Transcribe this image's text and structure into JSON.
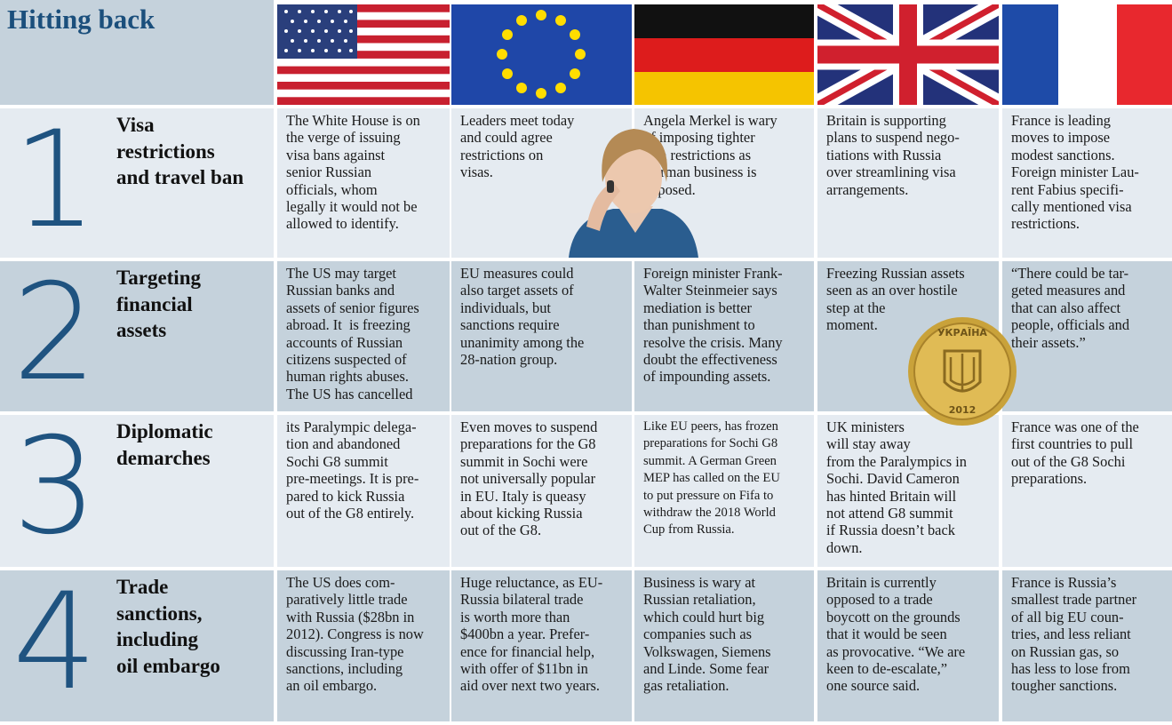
{
  "header": {
    "title": "Hitting back"
  },
  "rows": [
    {
      "number": "1",
      "heading": [
        "Visa",
        "restrictions",
        "and travel ban"
      ],
      "cells": [
        [
          "The White House is on",
          "the verge of issuing",
          "visa bans against",
          "senior Russian",
          "officials, whom",
          "legally it would not be",
          "allowed to identify."
        ],
        [
          "Leaders meet today",
          "and could agree",
          "restrictions on",
          "visas."
        ],
        [
          "Angela Merkel is wary",
          "of imposing tighter",
          "visa restrictions as",
          "German business is",
          "opposed."
        ],
        [
          "Britain is supporting",
          "plans to suspend nego-",
          "tiations with Russia",
          "over streamlining visa",
          "arrangements."
        ],
        [
          "France is leading",
          "moves to impose",
          "modest sanctions.",
          "Foreign minister Lau-",
          "rent Fabius specifi-",
          "cally mentioned visa",
          "restrictions."
        ]
      ]
    },
    {
      "number": "2",
      "heading": [
        "Targeting",
        "financial",
        "assets"
      ],
      "cells": [
        [
          "The US may target",
          "Russian banks and",
          "assets of senior figures",
          "abroad. It  is freezing",
          "accounts of Russian",
          "citizens suspected of",
          "human rights abuses.",
          "The US has cancelled"
        ],
        [
          "EU measures could",
          "also target assets of",
          "individuals, but",
          "sanctions require",
          "unanimity among the",
          "28-nation group."
        ],
        [
          "Foreign minister Frank-",
          "Walter Steinmeier says",
          "mediation is better",
          "than punishment to",
          "resolve the crisis. Many",
          "doubt the effectiveness",
          "of impounding assets."
        ],
        [
          "Freezing Russian assets",
          "seen as an over hostile",
          "step at the",
          "moment."
        ],
        [
          "“There could be tar-",
          "geted measures and",
          "that can also affect",
          "people, officials and",
          "their assets.”"
        ]
      ]
    },
    {
      "number": "3",
      "heading": [
        "Diplomatic",
        "demarches"
      ],
      "cells": [
        [
          "its Paralympic delega-",
          "tion and abandoned",
          "Sochi G8 summit",
          "pre-meetings. It is pre-",
          "pared to kick Russia",
          "out of the G8 entirely."
        ],
        [
          "Even moves to suspend",
          "preparations for the G8",
          "summit in Sochi were",
          "not universally popular",
          "in EU. Italy is queasy",
          "about kicking Russia",
          "out of the G8."
        ],
        [
          "Like EU peers, has frozen",
          "preparations for Sochi G8",
          "summit. A German Green",
          "MEP has called on the EU",
          "to put pressure on Fifa to",
          "withdraw the 2018 World",
          "Cup from Russia."
        ],
        [
          "UK ministers",
          "will stay away",
          "from the Paralympics in",
          "Sochi. David Cameron",
          "has hinted Britain will",
          "not attend G8 summit",
          "if Russia doesn’t back",
          "down."
        ],
        [
          "France was one of the",
          "first countries to pull",
          "out of the G8 Sochi",
          "preparations."
        ]
      ]
    },
    {
      "number": "4",
      "heading": [
        "Trade",
        "sanctions,",
        "including",
        "oil embargo"
      ],
      "cells": [
        [
          "The US does com-",
          "paratively little trade",
          "with Russia ($28bn in",
          "2012). Congress is now",
          "discussing Iran-type",
          "sanctions, including",
          "an oil embargo."
        ],
        [
          "Huge reluctance, as EU-",
          "Russia bilateral trade",
          "is worth more than",
          "$400bn a year. Prefer-",
          "ence for financial help,",
          "with offer of $11bn in",
          "aid over next two years."
        ],
        [
          "Business is wary at",
          "Russian retaliation,",
          "which could hurt big",
          "companies such as",
          "Volkswagen, Siemens",
          "and Linde. Some fear",
          "gas retaliation."
        ],
        [
          "Britain is currently",
          "opposed to a trade",
          "boycott on the grounds",
          "that it would be seen",
          "as provocative. “We are",
          "keen to de-escalate,”",
          "one source said."
        ],
        [
          "France is Russia’s",
          "smallest trade partner",
          "of all big EU coun-",
          "tries, and less reliant",
          "on Russian gas, so",
          "has less to lose from",
          "tougher sanctions."
        ]
      ]
    }
  ],
  "coin": {
    "top": "УКРАЇНА",
    "year": "2012"
  }
}
